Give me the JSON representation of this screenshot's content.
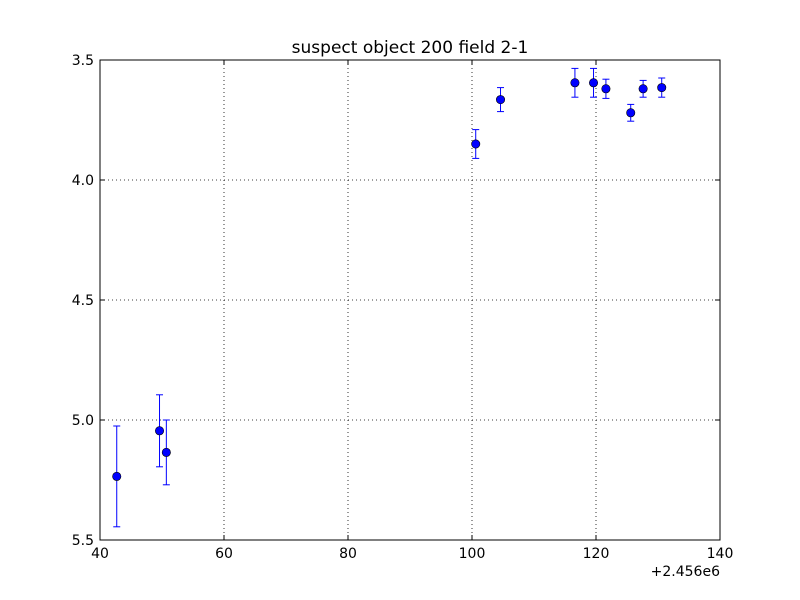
{
  "chart_data": {
    "type": "scatter",
    "title": "suspect object 200 field 2-1",
    "xlabel": "",
    "ylabel": "",
    "x_offset_label": "+2.456e6",
    "xlim": [
      40,
      140
    ],
    "ylim": [
      3.5,
      5.5
    ],
    "y_inverted": true,
    "grid": true,
    "x_ticks": [
      40,
      60,
      80,
      100,
      120,
      140
    ],
    "x_tick_labels": [
      "40",
      "60",
      "80",
      "100",
      "120",
      "140"
    ],
    "y_ticks": [
      3.5,
      4.0,
      4.5,
      5.0,
      5.5
    ],
    "y_tick_labels": [
      "3.5",
      "4.0",
      "4.5",
      "5.0",
      "5.5"
    ],
    "marker_color": "#0000ff",
    "series": [
      {
        "points": [
          {
            "x": 42.7,
            "y": 5.235,
            "err": 0.21
          },
          {
            "x": 49.6,
            "y": 5.045,
            "err": 0.15
          },
          {
            "x": 50.7,
            "y": 5.135,
            "err": 0.135
          },
          {
            "x": 100.6,
            "y": 3.85,
            "err": 0.06
          },
          {
            "x": 104.6,
            "y": 3.665,
            "err": 0.05
          },
          {
            "x": 116.6,
            "y": 3.595,
            "err": 0.06
          },
          {
            "x": 119.6,
            "y": 3.595,
            "err": 0.06
          },
          {
            "x": 121.6,
            "y": 3.62,
            "err": 0.04
          },
          {
            "x": 125.6,
            "y": 3.72,
            "err": 0.035
          },
          {
            "x": 127.6,
            "y": 3.62,
            "err": 0.035
          },
          {
            "x": 130.6,
            "y": 3.615,
            "err": 0.04
          }
        ]
      }
    ]
  }
}
